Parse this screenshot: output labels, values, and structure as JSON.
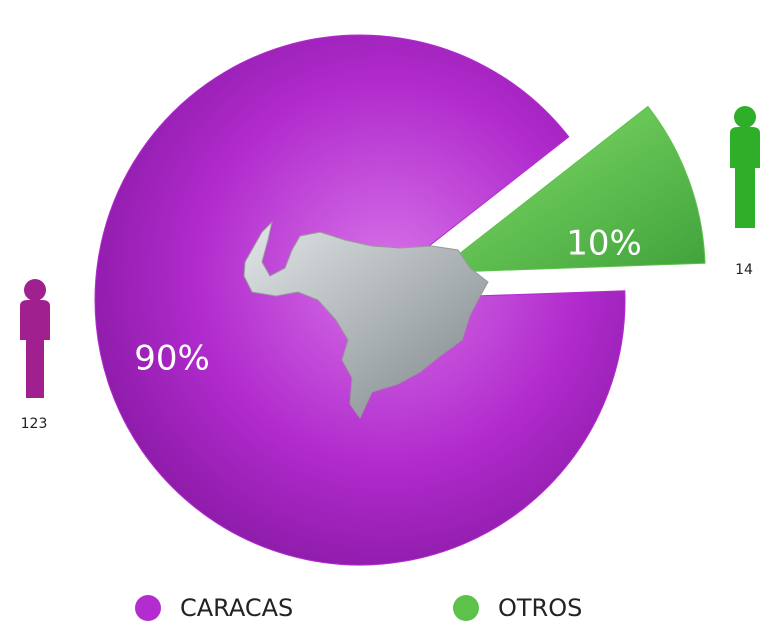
{
  "chart_data": {
    "type": "pie",
    "categories": [
      "CARACAS",
      "OTROS"
    ],
    "values": [
      90,
      10
    ],
    "value_labels": [
      "90%",
      "10%"
    ],
    "counts": [
      123,
      14
    ],
    "colors": [
      "#b32ccf",
      "#5cc24a"
    ],
    "legend": "bottom"
  }
}
